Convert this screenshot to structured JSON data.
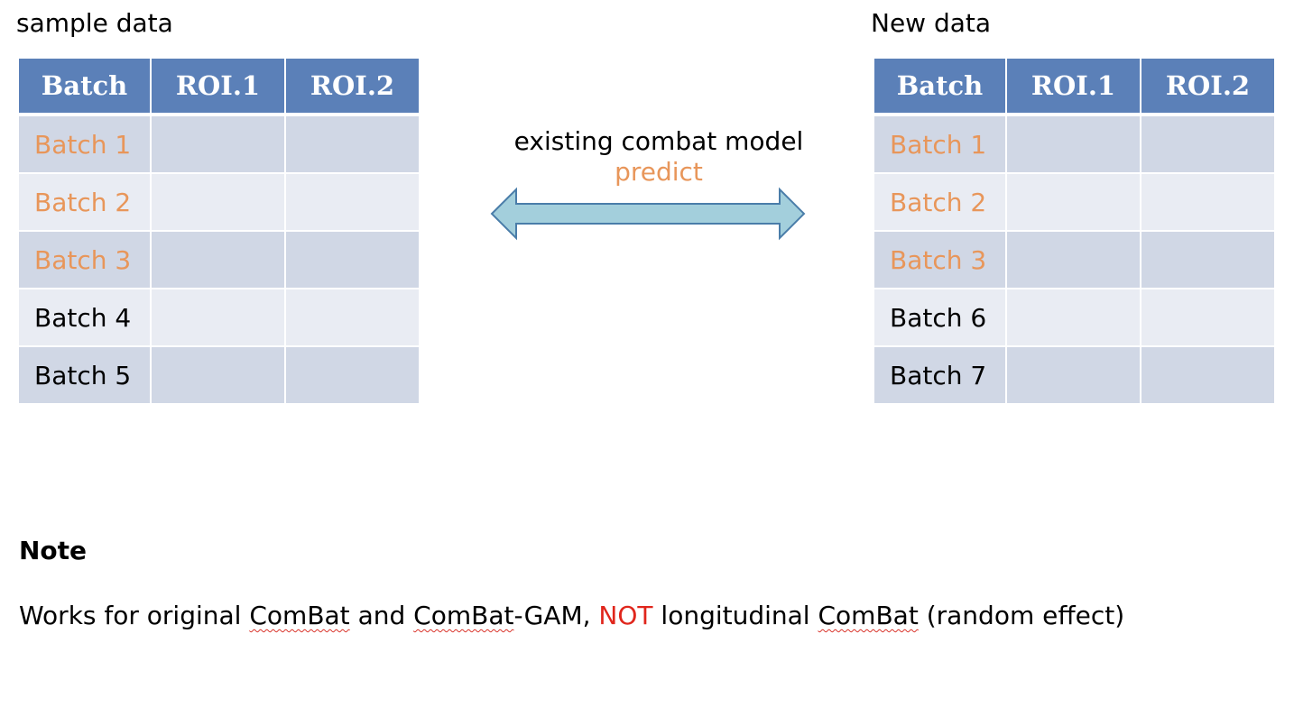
{
  "colors": {
    "header_bg": "#5b80b8",
    "header_text": "#ffffff",
    "row_dark": "#d0d7e5",
    "row_light": "#e9ecf3",
    "highlight": "#e8965a",
    "warning_red": "#e0261c",
    "arrow_fill": "#a3cfdc",
    "arrow_stroke": "#4a7da9",
    "spellcheck_squiggle": "#d9342b"
  },
  "left_panel": {
    "caption": "sample data",
    "headers": [
      "Batch",
      "ROI.1",
      "ROI.2"
    ],
    "rows": [
      {
        "batch": "Batch 1",
        "highlight": true,
        "roi1": "",
        "roi2": ""
      },
      {
        "batch": "Batch 2",
        "highlight": true,
        "roi1": "",
        "roi2": ""
      },
      {
        "batch": "Batch 3",
        "highlight": true,
        "roi1": "",
        "roi2": ""
      },
      {
        "batch": "Batch 4",
        "highlight": false,
        "roi1": "",
        "roi2": ""
      },
      {
        "batch": "Batch 5",
        "highlight": false,
        "roi1": "",
        "roi2": ""
      }
    ]
  },
  "right_panel": {
    "caption": "New data",
    "headers": [
      "Batch",
      "ROI.1",
      "ROI.2"
    ],
    "rows": [
      {
        "batch": "Batch 1",
        "highlight": true,
        "roi1": "",
        "roi2": ""
      },
      {
        "batch": "Batch 2",
        "highlight": true,
        "roi1": "",
        "roi2": ""
      },
      {
        "batch": "Batch 3",
        "highlight": true,
        "roi1": "",
        "roi2": ""
      },
      {
        "batch": "Batch 6",
        "highlight": false,
        "roi1": "",
        "roi2": ""
      },
      {
        "batch": "Batch 7",
        "highlight": false,
        "roi1": "",
        "roi2": ""
      }
    ]
  },
  "connector": {
    "line1": "existing combat model",
    "line2": "predict",
    "icon": "double-arrow-icon"
  },
  "note": {
    "title": "Note",
    "parts": {
      "p1": "Works for original ",
      "w1": "ComBat",
      "p2": " and ",
      "w2": "ComBat",
      "p3": "-GAM, ",
      "not": "NOT",
      "p4": " longitudinal ",
      "w3": "ComBat",
      "p5": " (random effect)"
    }
  }
}
